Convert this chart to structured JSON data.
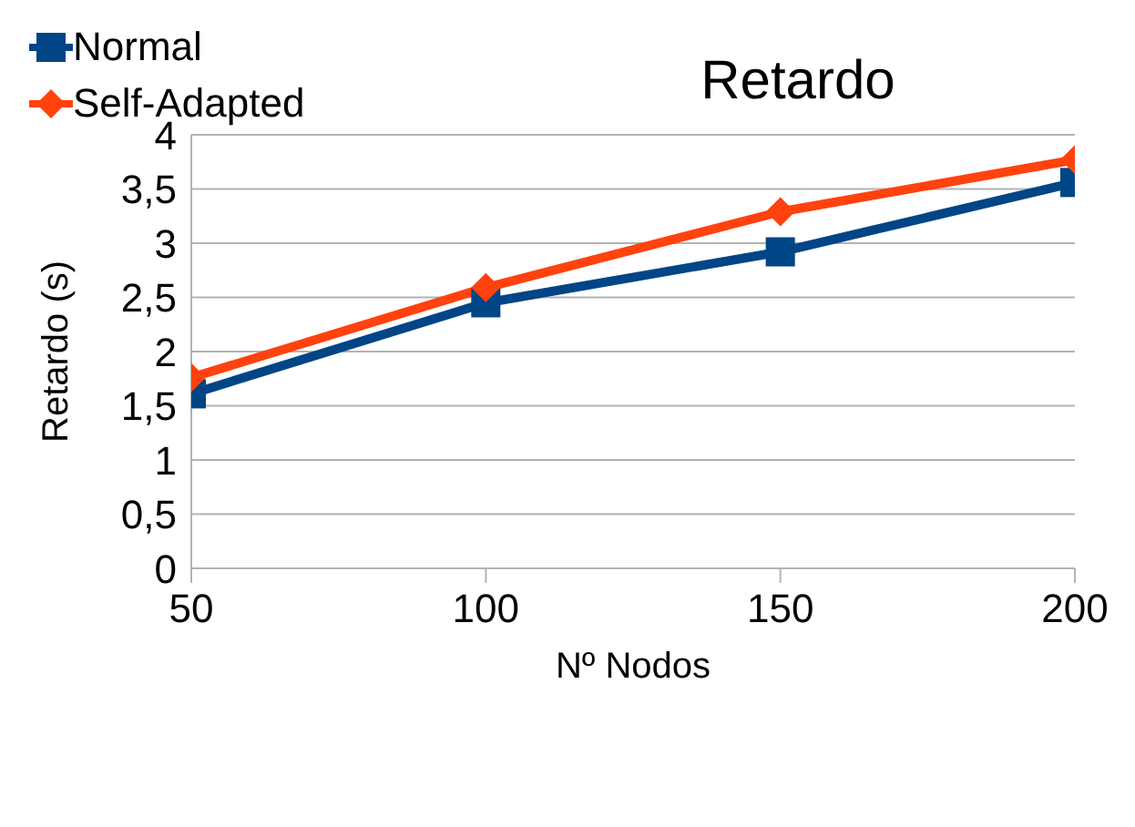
{
  "chart_data": {
    "type": "line",
    "title": "Retardo",
    "xlabel": "Nº Nodos",
    "ylabel": "Retardo (s)",
    "x": [
      50,
      100,
      150,
      200
    ],
    "series": [
      {
        "name": "Normal",
        "color": "#004586",
        "marker": "square",
        "values": [
          1.61,
          2.45,
          2.92,
          3.56
        ]
      },
      {
        "name": "Self-Adapted",
        "color": "#ff420e",
        "marker": "diamond",
        "values": [
          1.76,
          2.59,
          3.29,
          3.77
        ]
      }
    ],
    "xlim": [
      50,
      200
    ],
    "xticks": [
      50,
      100,
      150,
      200
    ],
    "ylim": [
      0,
      4
    ],
    "yticks": [
      0,
      {
        "value": 0.5,
        "label": "0,5"
      },
      1,
      {
        "value": 1.5,
        "label": "1,5"
      },
      2,
      {
        "value": 2.5,
        "label": "2,5"
      },
      3,
      {
        "value": 3.5,
        "label": "3,5"
      },
      4
    ],
    "grid": "y",
    "legend": "top left",
    "line_style": "solid"
  }
}
